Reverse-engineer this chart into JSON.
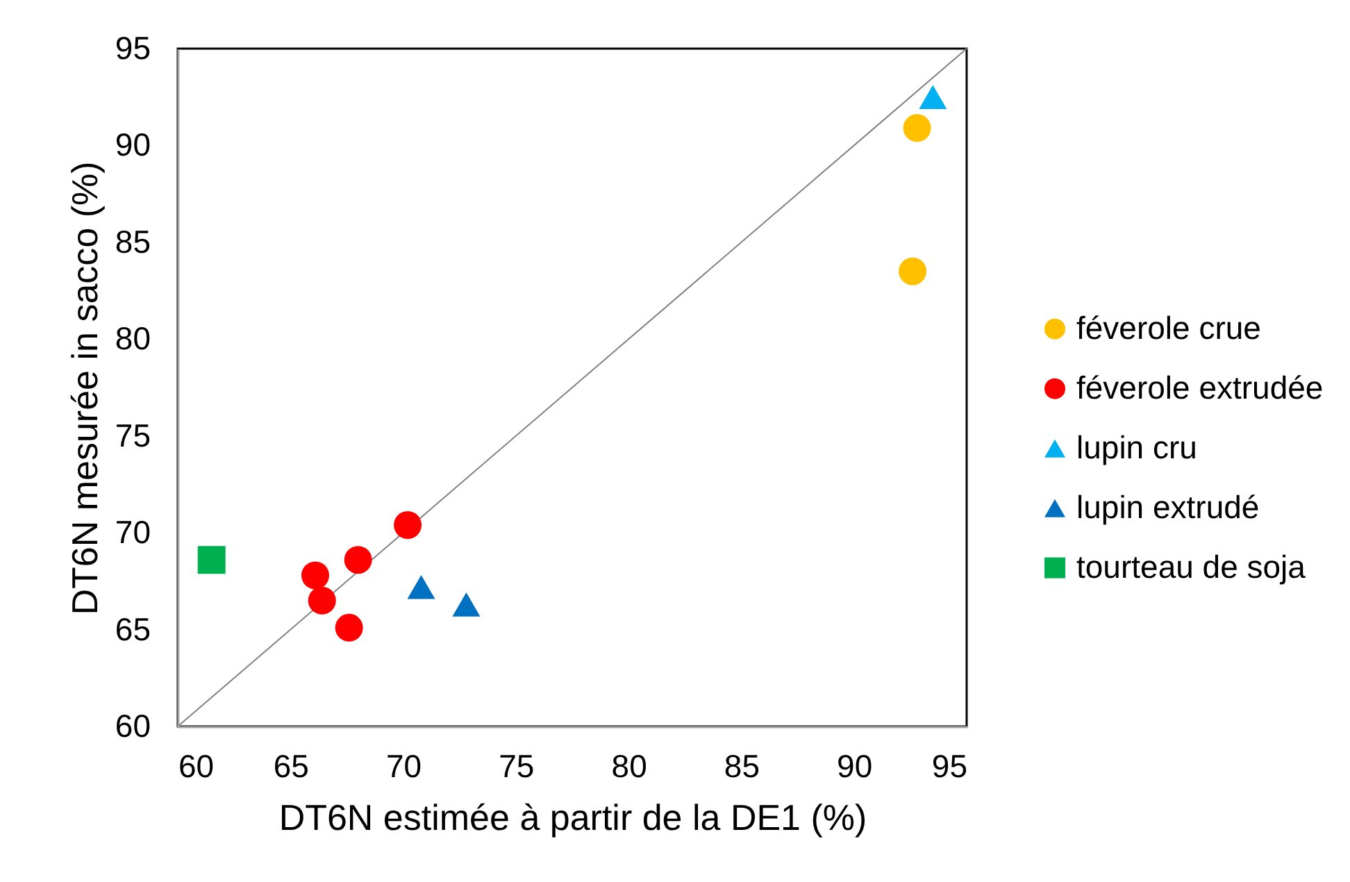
{
  "chart_data": {
    "type": "scatter",
    "xlabel": "DT6N estimée à partir de la DE1 (%)",
    "ylabel": "DT6N mesurée in sacco (%)",
    "xlim": [
      60,
      95
    ],
    "xticks": [
      60,
      65,
      70,
      75,
      80,
      85,
      90,
      95
    ],
    "ylim": [
      60,
      95
    ],
    "yticks": [
      60,
      65,
      70,
      75,
      80,
      85,
      90,
      95
    ],
    "legend": "right",
    "series": [
      {
        "type": "line",
        "color": "#808080",
        "marker": "none",
        "x": [
          60,
          95
        ],
        "values": [
          60,
          95
        ]
      },
      {
        "name": "féverole crue",
        "color": "#ffc000",
        "marker": "circle",
        "x": [
          92.8,
          92.6
        ],
        "values": [
          90.9,
          83.5
        ]
      },
      {
        "name": "féverole extrudée",
        "color": "#ff0000",
        "marker": "circle",
        "x": [
          70.2,
          68.0,
          66.1,
          66.4,
          67.6
        ],
        "values": [
          70.4,
          68.6,
          67.8,
          66.5,
          65.1
        ]
      },
      {
        "name": "lupin cru",
        "color": "#00b0f0",
        "marker": "triangle",
        "x": [
          93.5
        ],
        "values": [
          92.5
        ]
      },
      {
        "name": "lupin extrudé",
        "color": "#0070c0",
        "marker": "triangle",
        "x": [
          70.8,
          72.8
        ],
        "values": [
          67.2,
          66.3
        ]
      },
      {
        "name": "tourteau de soja",
        "color": "#00b050",
        "marker": "square",
        "x": [
          61.5
        ],
        "values": [
          68.6
        ]
      }
    ]
  }
}
